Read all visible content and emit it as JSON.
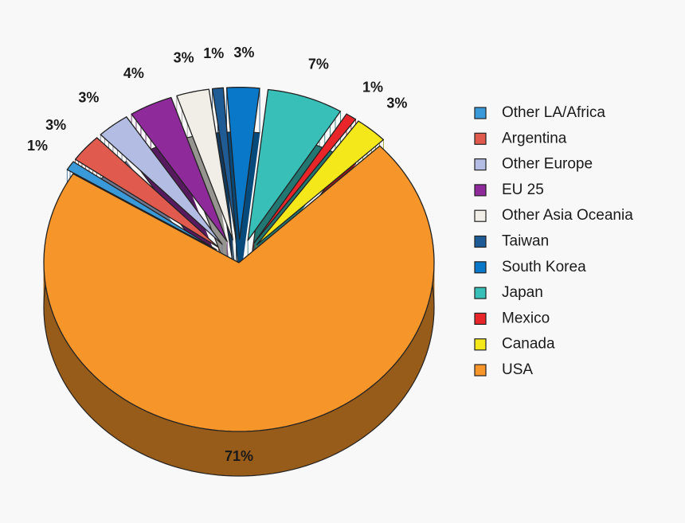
{
  "chart_data": {
    "type": "pie3d",
    "categories": [
      "Other LA/Africa",
      "Argentina",
      "Other Europe",
      "EU 25",
      "Other Asia Oceania",
      "Taiwan",
      "South Korea",
      "Japan",
      "Mexico",
      "Canada",
      "USA"
    ],
    "values": [
      1,
      3,
      3,
      4,
      3,
      1,
      3,
      7,
      1,
      3,
      71
    ],
    "value_labels": [
      "1%",
      "3%",
      "3%",
      "4%",
      "3%",
      "1%",
      "3%",
      "7%",
      "1%",
      "3%",
      "71%"
    ],
    "colors": [
      "#3a9ad9",
      "#e05a4e",
      "#b3bde3",
      "#8e2a9a",
      "#f0eee6",
      "#1f5c96",
      "#0a78c8",
      "#38c0b8",
      "#e8262a",
      "#f5e81a",
      "#f5952a"
    ],
    "legend": "right"
  }
}
